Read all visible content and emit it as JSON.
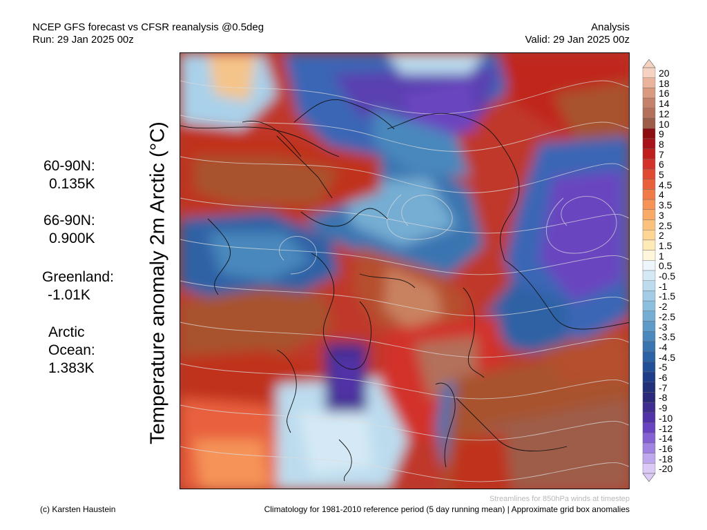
{
  "header": {
    "title_line1": "NCEP GFS forecast vs CFSR reanalysis @0.5deg",
    "title_line2": "Run: 29 Jan 2025 00z",
    "right_line1": "Analysis",
    "right_line2": "Valid: 29 Jan 2025 00z"
  },
  "side_title": "Temperature anomaly 2m Arctic (°C)",
  "stats": [
    {
      "label": "60-90N:",
      "value": "0.135K"
    },
    {
      "label": "66-90N:",
      "value": "0.900K"
    },
    {
      "label": "Greenland:",
      "value": "-1.01K"
    },
    {
      "label_lines": [
        "Arctic",
        "Ocean:"
      ],
      "value": "1.383K"
    }
  ],
  "colorbar": {
    "labels": [
      "20",
      "18",
      "16",
      "14",
      "12",
      "10",
      "9",
      "8",
      "7",
      "6",
      "5",
      "4.5",
      "4",
      "3.5",
      "3",
      "2.5",
      "2",
      "1.5",
      "1",
      "0.5",
      "-0.5",
      "-1",
      "-1.5",
      "-2",
      "-2.5",
      "-3",
      "-3.5",
      "-4",
      "-4.5",
      "-5",
      "-6",
      "-7",
      "-8",
      "-9",
      "-10",
      "-12",
      "-14",
      "-16",
      "-18",
      "-20"
    ],
    "colors": [
      "#f6d2c2",
      "#e9b39c",
      "#d99a80",
      "#c5826a",
      "#b3705a",
      "#9e5d48",
      "#8c0e12",
      "#a8121a",
      "#c01e1e",
      "#d2322a",
      "#e04a32",
      "#e8603c",
      "#f07a48",
      "#f59358",
      "#f8aa66",
      "#fbc27e",
      "#fdd696",
      "#feeab6",
      "#fff6dc",
      "#eef6fb",
      "#d4e9f5",
      "#bcdcee",
      "#a3cde6",
      "#8cbedd",
      "#75add3",
      "#5f9bc8",
      "#4a88bd",
      "#3a74b1",
      "#2d62a5",
      "#234f97",
      "#1f3c88",
      "#22307a",
      "#2b2a7a",
      "#3f2d90",
      "#5232a8",
      "#6a44c0",
      "#8562d4",
      "#a183e2",
      "#bfa8ee",
      "#dccaf6"
    ]
  },
  "footer": {
    "streamlines_note": "Streamlines for 850hPa winds at timestep",
    "credit": "(c) Karsten Haustein",
    "climatology": "Climatology for 1981-2010 reference period (5 day running mean) | Approximate grid box anomalies"
  }
}
